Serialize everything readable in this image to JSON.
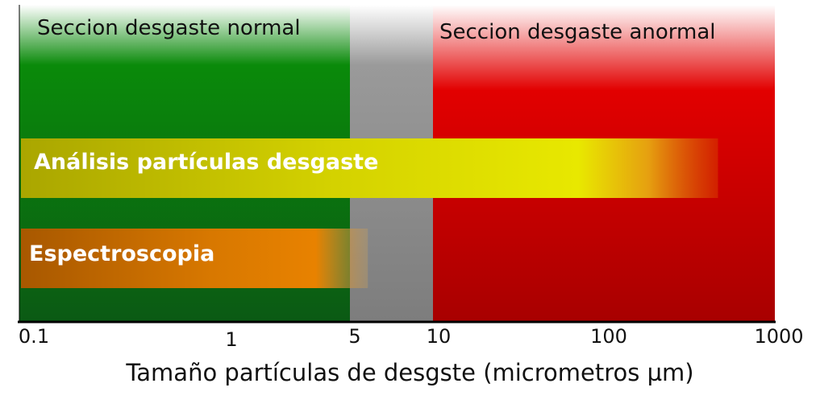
{
  "zones": {
    "normal": {
      "label": "Seccion desgaste normal",
      "color": "#0a8a10"
    },
    "transition": {
      "color": "#8c8c8c"
    },
    "abnormal": {
      "label": "Seccion desgaste anormal",
      "color": "#d80000"
    }
  },
  "bands": [
    {
      "label": "Análisis partículas desgaste",
      "from_um": 0.1,
      "to_um": 500,
      "color": "#e2e000"
    },
    {
      "label": "Espectroscopia",
      "from_um": 0.1,
      "to_um": 7,
      "color": "#e07800"
    }
  ],
  "axis": {
    "title": "Tamaño partículas de desgste (micrometros µm)",
    "scale": "log",
    "ticks": [
      {
        "value": 0.1,
        "label": "0.1"
      },
      {
        "value": 1,
        "label": "1"
      },
      {
        "value": 5,
        "label": "5"
      },
      {
        "value": 10,
        "label": "10"
      },
      {
        "value": 100,
        "label": "100"
      },
      {
        "value": 1000,
        "label": "1000"
      }
    ]
  }
}
